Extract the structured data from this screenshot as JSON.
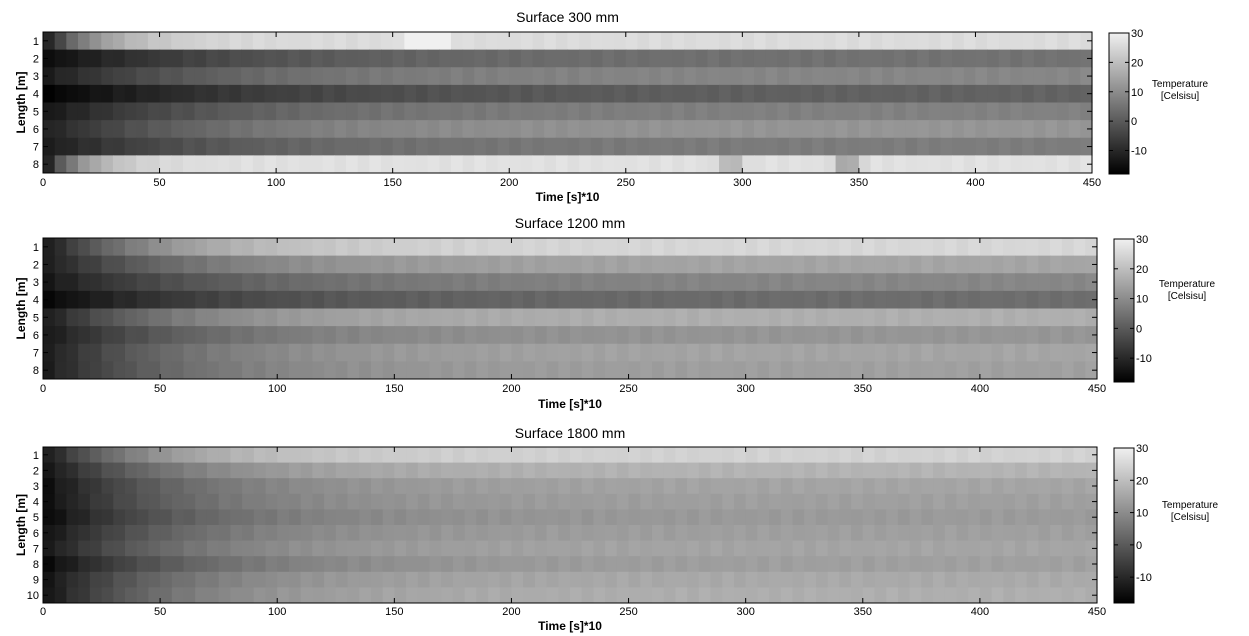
{
  "chart_data": [
    {
      "type": "heatmap",
      "title": "Surface 300 mm",
      "xlabel": "Time [s]*10",
      "ylabel": "Length [m]",
      "xlim": [
        0,
        450
      ],
      "xticks": [
        "0",
        "50",
        "100",
        "150",
        "200",
        "250",
        "300",
        "350",
        "400",
        "450"
      ],
      "rows": [
        "1",
        "2",
        "3",
        "4",
        "5",
        "6",
        "7",
        "8"
      ],
      "colorbar": {
        "label_line1": "Temperature",
        "label_line2": "[Celsisu]",
        "ticks": [
          "30",
          "20",
          "10",
          "0",
          "-10"
        ],
        "range": [
          -18,
          30
        ]
      },
      "profiles": [
        {
          "start": -15,
          "end": 26,
          "rate": 0.045,
          "bumps": [
            [
              165,
              18,
              7
            ]
          ]
        },
        {
          "start": -16,
          "end": 5,
          "rate": 0.012,
          "bumps": []
        },
        {
          "start": -13,
          "end": 9,
          "rate": 0.014,
          "bumps": []
        },
        {
          "start": -18,
          "end": 2,
          "rate": 0.01,
          "bumps": []
        },
        {
          "start": -14,
          "end": 8,
          "rate": 0.013,
          "bumps": []
        },
        {
          "start": -12,
          "end": 12,
          "rate": 0.014,
          "bumps": []
        },
        {
          "start": -13,
          "end": 7,
          "rate": 0.013,
          "bumps": []
        },
        {
          "start": -16,
          "end": 27,
          "rate": 0.06,
          "bumps": [
            [
              295,
              -10,
              5
            ],
            [
              345,
              -14,
              5
            ]
          ]
        }
      ]
    },
    {
      "type": "heatmap",
      "title": "Surface 1200 mm",
      "xlabel": "Time [s]*10",
      "ylabel": "Length [m]",
      "xlim": [
        0,
        450
      ],
      "xticks": [
        "0",
        "50",
        "100",
        "150",
        "200",
        "250",
        "300",
        "350",
        "400",
        "450"
      ],
      "rows": [
        "1",
        "2",
        "3",
        "4",
        "5",
        "6",
        "7",
        "8"
      ],
      "colorbar": {
        "label_line1": "Temperature",
        "label_line2": "[Celsisu]",
        "ticks": [
          "30",
          "20",
          "10",
          "0",
          "-10"
        ],
        "range": [
          -18,
          30
        ]
      },
      "profiles": [
        {
          "start": -14,
          "end": 25,
          "rate": 0.02,
          "bumps": []
        },
        {
          "start": -13,
          "end": 15,
          "rate": 0.016,
          "bumps": []
        },
        {
          "start": -14,
          "end": 9,
          "rate": 0.013,
          "bumps": []
        },
        {
          "start": -17,
          "end": 4,
          "rate": 0.012,
          "bumps": []
        },
        {
          "start": -13,
          "end": 17,
          "rate": 0.018,
          "bumps": []
        },
        {
          "start": -14,
          "end": 12,
          "rate": 0.015,
          "bumps": []
        },
        {
          "start": -13,
          "end": 15,
          "rate": 0.016,
          "bumps": []
        },
        {
          "start": -13,
          "end": 14,
          "rate": 0.016,
          "bumps": []
        }
      ]
    },
    {
      "type": "heatmap",
      "title": "Surface 1800 mm",
      "xlabel": "Time [s]*10",
      "ylabel": "Length [m]",
      "xlim": [
        0,
        450
      ],
      "xticks": [
        "0",
        "50",
        "100",
        "150",
        "200",
        "250",
        "300",
        "350",
        "400",
        "450"
      ],
      "rows": [
        "1",
        "2",
        "3",
        "4",
        "5",
        "6",
        "7",
        "8",
        "9",
        "10"
      ],
      "colorbar": {
        "label_line1": "Temperature",
        "label_line2": "[Celsisu]",
        "ticks": [
          "30",
          "20",
          "10",
          "0",
          "-10"
        ],
        "range": [
          -18,
          30
        ]
      },
      "profiles": [
        {
          "start": -14,
          "end": 24,
          "rate": 0.022,
          "bumps": []
        },
        {
          "start": -15,
          "end": 18,
          "rate": 0.018,
          "bumps": []
        },
        {
          "start": -16,
          "end": 15,
          "rate": 0.016,
          "bumps": []
        },
        {
          "start": -16,
          "end": 14,
          "rate": 0.016,
          "bumps": []
        },
        {
          "start": -17,
          "end": 13,
          "rate": 0.015,
          "bumps": []
        },
        {
          "start": -15,
          "end": 14,
          "rate": 0.016,
          "bumps": []
        },
        {
          "start": -14,
          "end": 15,
          "rate": 0.017,
          "bumps": []
        },
        {
          "start": -17,
          "end": 14,
          "rate": 0.015,
          "bumps": []
        },
        {
          "start": -15,
          "end": 16,
          "rate": 0.017,
          "bumps": []
        },
        {
          "start": -15,
          "end": 17,
          "rate": 0.018,
          "bumps": []
        }
      ]
    }
  ]
}
